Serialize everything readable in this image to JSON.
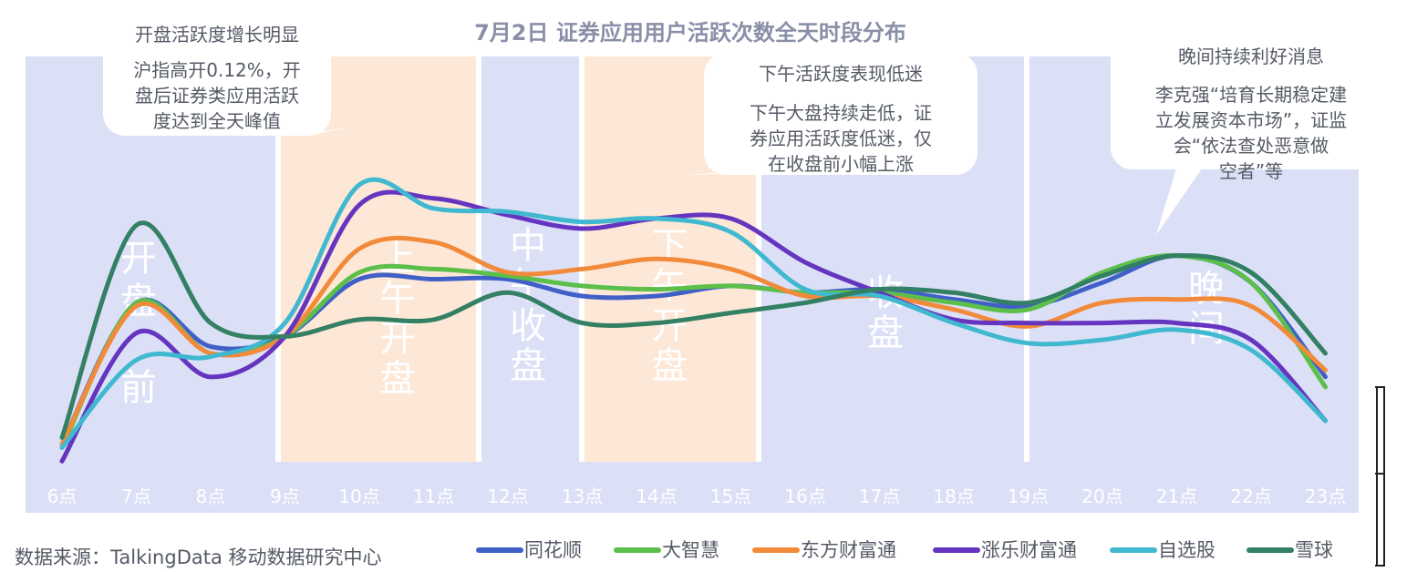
{
  "chart_data": {
    "type": "line",
    "title": "7月2日 证券应用用户活跃次数全天时段分布",
    "categories": [
      "6点",
      "7点",
      "8点",
      "9点",
      "10点",
      "11点",
      "12点",
      "13点",
      "14点",
      "15点",
      "16点",
      "17点",
      "18点",
      "19点",
      "20点",
      "21点",
      "22点",
      "23点"
    ],
    "series": [
      {
        "name": "同花顺",
        "color": "#4060c8",
        "values": [
          0.06,
          0.48,
          0.35,
          0.38,
          0.55,
          0.55,
          0.55,
          0.5,
          0.5,
          0.53,
          0.51,
          0.52,
          0.49,
          0.47,
          0.54,
          0.62,
          0.54,
          0.26
        ]
      },
      {
        "name": "大智慧",
        "color": "#5cbf4a",
        "values": [
          0.05,
          0.48,
          0.33,
          0.38,
          0.57,
          0.58,
          0.56,
          0.53,
          0.52,
          0.53,
          0.51,
          0.51,
          0.48,
          0.46,
          0.57,
          0.62,
          0.54,
          0.23
        ]
      },
      {
        "name": "东方财富通",
        "color": "#f28a3c",
        "values": [
          0.06,
          0.47,
          0.33,
          0.38,
          0.64,
          0.66,
          0.57,
          0.58,
          0.61,
          0.58,
          0.5,
          0.5,
          0.46,
          0.41,
          0.48,
          0.49,
          0.47,
          0.28
        ]
      },
      {
        "name": "涨乐财富通",
        "color": "#6535c0",
        "values": [
          0.01,
          0.39,
          0.26,
          0.38,
          0.77,
          0.79,
          0.74,
          0.7,
          0.73,
          0.73,
          0.6,
          0.51,
          0.43,
          0.42,
          0.42,
          0.42,
          0.37,
          0.13
        ]
      },
      {
        "name": "自选股",
        "color": "#40b8d0",
        "values": [
          0.05,
          0.31,
          0.32,
          0.42,
          0.83,
          0.76,
          0.75,
          0.72,
          0.73,
          0.69,
          0.52,
          0.5,
          0.42,
          0.36,
          0.37,
          0.4,
          0.34,
          0.13
        ]
      },
      {
        "name": "雪球",
        "color": "#338064",
        "values": [
          0.08,
          0.71,
          0.42,
          0.38,
          0.43,
          0.43,
          0.51,
          0.42,
          0.42,
          0.45,
          0.48,
          0.52,
          0.51,
          0.48,
          0.56,
          0.62,
          0.57,
          0.33
        ]
      }
    ],
    "periods": [
      {
        "label": "开盘前",
        "color": "#dce0f7"
      },
      {
        "label": "上午开盘",
        "color": "#fde7d6"
      },
      {
        "label": "中午收盘",
        "color": "#dce0f7"
      },
      {
        "label": "下午开盘",
        "color": "#fde7d6"
      },
      {
        "label": "收盘",
        "color": "#dce0f7"
      },
      {
        "label": "晚间",
        "color": "#dce0f7"
      }
    ],
    "callouts": [
      {
        "heading": "开盘活跃度增长明显",
        "body": [
          "沪指高开0.12%，开",
          "盘后证券类应用活跃",
          "度达到全天峰值"
        ]
      },
      {
        "heading": "下午活跃度表现低迷",
        "body": [
          "下午大盘持续走低，证",
          "券应用活跃度低迷，仅",
          "在收盘前小幅上涨"
        ]
      },
      {
        "heading": "晚间持续利好消息",
        "body": [
          "李克强“培育长期稳定建",
          "立发展资本市场”，证监",
          "会“依法查处恶意做",
          "空者”等"
        ]
      }
    ],
    "source": "数据来源：TalkingData 移动数据研究中心",
    "ylim": [
      0,
      1
    ],
    "grid": false,
    "legend_position": "bottom-right"
  }
}
